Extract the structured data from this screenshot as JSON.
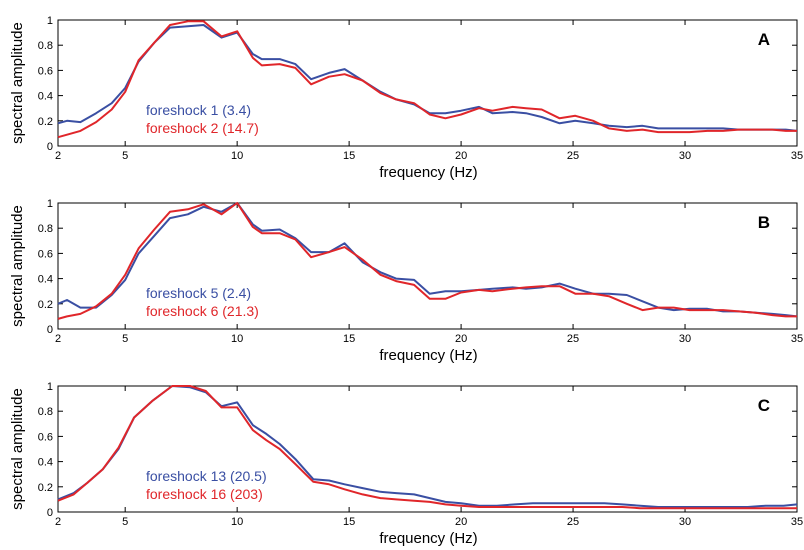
{
  "colors": {
    "series1": "#3a4fa3",
    "series2": "#e0262a",
    "axis": "#000000"
  },
  "chart_data": [
    {
      "type": "line",
      "panel_label": "A",
      "xlabel": "frequency (Hz)",
      "ylabel": "spectral amplitude",
      "xlim": [
        2,
        35
      ],
      "ylim": [
        0,
        1
      ],
      "xticks": [
        2,
        5,
        10,
        15,
        20,
        25,
        30,
        35
      ],
      "yticks": [
        "0",
        "0.2",
        "0.4",
        "0.6",
        "0.8",
        "1"
      ],
      "x": [
        2,
        2.4,
        3,
        3.7,
        4.4,
        5,
        5.6,
        6.3,
        7,
        7.8,
        8.5,
        9.3,
        10,
        10.7,
        11.1,
        11.9,
        12.6,
        13.3,
        14.1,
        14.8,
        15.6,
        16.4,
        17.1,
        17.9,
        18.6,
        19.3,
        20,
        20.8,
        21.4,
        22.3,
        22.9,
        23.6,
        24.4,
        25.1,
        25.9,
        26.6,
        27.4,
        28.1,
        28.8,
        29.5,
        30.2,
        31,
        31.7,
        32.4,
        33.1,
        33.9,
        34.5,
        35
      ],
      "series": [
        {
          "name": "foreshock 1 (3.4)",
          "values": [
            0.18,
            0.2,
            0.19,
            0.26,
            0.34,
            0.46,
            0.67,
            0.82,
            0.94,
            0.95,
            0.96,
            0.86,
            0.9,
            0.73,
            0.69,
            0.69,
            0.65,
            0.53,
            0.58,
            0.61,
            0.52,
            0.43,
            0.37,
            0.33,
            0.26,
            0.26,
            0.28,
            0.31,
            0.26,
            0.27,
            0.26,
            0.23,
            0.18,
            0.2,
            0.18,
            0.16,
            0.15,
            0.16,
            0.14,
            0.14,
            0.14,
            0.14,
            0.14,
            0.13,
            0.13,
            0.13,
            0.13,
            0.12
          ]
        },
        {
          "name": "foreshock 2 (14.7)",
          "values": [
            0.07,
            0.09,
            0.12,
            0.19,
            0.29,
            0.43,
            0.68,
            0.82,
            0.96,
            0.99,
            0.99,
            0.87,
            0.91,
            0.7,
            0.64,
            0.65,
            0.62,
            0.49,
            0.55,
            0.57,
            0.52,
            0.42,
            0.37,
            0.34,
            0.25,
            0.22,
            0.25,
            0.3,
            0.28,
            0.31,
            0.3,
            0.29,
            0.22,
            0.24,
            0.2,
            0.14,
            0.12,
            0.13,
            0.11,
            0.11,
            0.11,
            0.12,
            0.12,
            0.13,
            0.13,
            0.13,
            0.12,
            0.12
          ]
        }
      ]
    },
    {
      "type": "line",
      "panel_label": "B",
      "xlabel": "frequency (Hz)",
      "ylabel": "spectral amplitude",
      "xlim": [
        2,
        35
      ],
      "ylim": [
        0,
        1
      ],
      "xticks": [
        2,
        5,
        10,
        15,
        20,
        25,
        30,
        35
      ],
      "yticks": [
        "0",
        "0.2",
        "0.4",
        "0.6",
        "0.8",
        "1"
      ],
      "x": [
        2,
        2.4,
        3,
        3.7,
        4.4,
        5,
        5.6,
        6.3,
        7,
        7.8,
        8.5,
        9.3,
        10,
        10.7,
        11.1,
        11.9,
        12.6,
        13.3,
        14.1,
        14.8,
        15.6,
        16.4,
        17.1,
        17.9,
        18.6,
        19.3,
        20,
        20.8,
        21.4,
        22.3,
        22.9,
        23.6,
        24.4,
        25.1,
        25.9,
        26.6,
        27.4,
        28.1,
        28.8,
        29.5,
        30.2,
        31,
        31.7,
        32.4,
        33.1,
        33.9,
        34.5,
        35
      ],
      "series": [
        {
          "name": "foreshock 5 (2.4)",
          "values": [
            0.2,
            0.23,
            0.17,
            0.17,
            0.27,
            0.39,
            0.6,
            0.74,
            0.88,
            0.91,
            0.97,
            0.93,
            1.0,
            0.83,
            0.78,
            0.79,
            0.72,
            0.61,
            0.61,
            0.68,
            0.53,
            0.45,
            0.4,
            0.39,
            0.28,
            0.3,
            0.3,
            0.31,
            0.32,
            0.33,
            0.32,
            0.33,
            0.36,
            0.32,
            0.28,
            0.28,
            0.27,
            0.22,
            0.17,
            0.15,
            0.16,
            0.16,
            0.14,
            0.14,
            0.13,
            0.12,
            0.11,
            0.1
          ]
        },
        {
          "name": "foreshock 6 (21.3)",
          "values": [
            0.08,
            0.1,
            0.12,
            0.18,
            0.28,
            0.43,
            0.64,
            0.79,
            0.93,
            0.95,
            0.99,
            0.91,
            1.0,
            0.81,
            0.76,
            0.76,
            0.71,
            0.57,
            0.61,
            0.65,
            0.55,
            0.43,
            0.38,
            0.35,
            0.24,
            0.24,
            0.29,
            0.31,
            0.3,
            0.32,
            0.33,
            0.34,
            0.34,
            0.28,
            0.28,
            0.26,
            0.2,
            0.15,
            0.17,
            0.17,
            0.15,
            0.15,
            0.15,
            0.14,
            0.13,
            0.11,
            0.1,
            0.1
          ]
        }
      ]
    },
    {
      "type": "line",
      "panel_label": "C",
      "xlabel": "frequency (Hz)",
      "ylabel": "spectral amplitude",
      "xlim": [
        2,
        35
      ],
      "ylim": [
        0,
        1
      ],
      "xticks": [
        2,
        5,
        10,
        15,
        20,
        25,
        30,
        35
      ],
      "yticks": [
        "0",
        "0.2",
        "0.4",
        "0.6",
        "0.8",
        "1"
      ],
      "x": [
        2,
        2.7,
        3.3,
        4,
        4.7,
        5.4,
        6.2,
        7.1,
        7.9,
        8.6,
        9.3,
        10,
        10.7,
        11.3,
        11.9,
        12.6,
        13.4,
        14.1,
        14.8,
        15.6,
        16.4,
        17.1,
        17.9,
        18.6,
        19.3,
        20,
        20.8,
        21.6,
        22.4,
        23.2,
        24,
        24.8,
        25.6,
        26.4,
        27.2,
        28,
        28.8,
        29.6,
        30.4,
        31.2,
        32,
        32.8,
        33.6,
        34.4,
        35
      ],
      "series": [
        {
          "name": "foreshock 13 (20.5)",
          "values": [
            0.1,
            0.15,
            0.23,
            0.34,
            0.5,
            0.75,
            0.88,
            1.0,
            0.99,
            0.95,
            0.84,
            0.87,
            0.69,
            0.62,
            0.54,
            0.42,
            0.26,
            0.25,
            0.22,
            0.19,
            0.16,
            0.15,
            0.14,
            0.11,
            0.08,
            0.07,
            0.05,
            0.05,
            0.06,
            0.07,
            0.07,
            0.07,
            0.07,
            0.07,
            0.06,
            0.05,
            0.04,
            0.04,
            0.04,
            0.04,
            0.04,
            0.04,
            0.05,
            0.05,
            0.06
          ]
        },
        {
          "name": "foreshock 16 (203)",
          "values": [
            0.09,
            0.14,
            0.23,
            0.34,
            0.51,
            0.75,
            0.88,
            1.0,
            1.0,
            0.96,
            0.83,
            0.83,
            0.65,
            0.57,
            0.5,
            0.38,
            0.24,
            0.22,
            0.18,
            0.14,
            0.11,
            0.1,
            0.09,
            0.08,
            0.06,
            0.05,
            0.04,
            0.04,
            0.04,
            0.04,
            0.04,
            0.04,
            0.04,
            0.04,
            0.04,
            0.03,
            0.03,
            0.03,
            0.03,
            0.03,
            0.03,
            0.03,
            0.03,
            0.03,
            0.03
          ]
        }
      ]
    }
  ]
}
